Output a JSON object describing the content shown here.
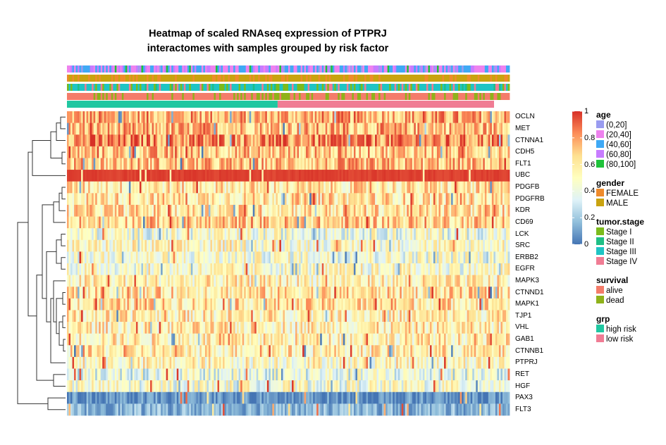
{
  "chart_data": {
    "type": "heatmap",
    "title_line1": "Heatmap of scaled RNAseq expression of  PTPRJ",
    "title_line2": "interactomes with samples grouped by risk factor",
    "rows": [
      {
        "gene": "OCLN",
        "mean": 0.75
      },
      {
        "gene": "MET",
        "mean": 0.72
      },
      {
        "gene": "CTNNA1",
        "mean": 0.82
      },
      {
        "gene": "CDH5",
        "mean": 0.7
      },
      {
        "gene": "FLT1",
        "mean": 0.7
      },
      {
        "gene": "UBC",
        "mean": 0.97
      },
      {
        "gene": "PDGFB",
        "mean": 0.6
      },
      {
        "gene": "PDGFRB",
        "mean": 0.62
      },
      {
        "gene": "KDR",
        "mean": 0.62
      },
      {
        "gene": "CD69",
        "mean": 0.68
      },
      {
        "gene": "LCK",
        "mean": 0.44
      },
      {
        "gene": "SRC",
        "mean": 0.5
      },
      {
        "gene": "ERBB2",
        "mean": 0.46
      },
      {
        "gene": "EGFR",
        "mean": 0.48
      },
      {
        "gene": "MAPK3",
        "mean": 0.55
      },
      {
        "gene": "CTNND1",
        "mean": 0.62
      },
      {
        "gene": "MAPK1",
        "mean": 0.62
      },
      {
        "gene": "TJP1",
        "mean": 0.57
      },
      {
        "gene": "VHL",
        "mean": 0.57
      },
      {
        "gene": "GAB1",
        "mean": 0.57
      },
      {
        "gene": "CTNNB1",
        "mean": 0.58
      },
      {
        "gene": "PTPRJ",
        "mean": 0.52
      },
      {
        "gene": "RET",
        "mean": 0.4
      },
      {
        "gene": "HGF",
        "mean": 0.46
      },
      {
        "gene": "PAX3",
        "mean": 0.05
      },
      {
        "gene": "FLT3",
        "mean": 0.15
      }
    ],
    "colorbar": {
      "range": [
        0,
        1
      ],
      "ticks": [
        "1",
        "0.8",
        "0.6",
        "0.4",
        "0.2",
        "0"
      ],
      "colors": [
        "#4575b4",
        "#91bfdb",
        "#e0f3f8",
        "#ffffbf",
        "#fee090",
        "#fc8d59",
        "#d73027"
      ]
    },
    "column_annotations": [
      "age",
      "gender",
      "tumor.stage",
      "survival",
      "grp"
    ],
    "grp_split_fraction": 0.476,
    "legends": [
      {
        "title": "age",
        "items": [
          {
            "label": "(0,20]",
            "color": "#9a9cf0"
          },
          {
            "label": "(20,40]",
            "color": "#ee82ee"
          },
          {
            "label": "(40,60]",
            "color": "#3fa9f5"
          },
          {
            "label": "(60,80]",
            "color": "#c77cff"
          },
          {
            "label": "(80,100]",
            "color": "#1fc23a"
          }
        ]
      },
      {
        "title": "gender",
        "items": [
          {
            "label": "FEMALE",
            "color": "#ef8b2c"
          },
          {
            "label": "MALE",
            "color": "#c9a310"
          }
        ]
      },
      {
        "title": "tumor.stage",
        "items": [
          {
            "label": "Stage I",
            "color": "#7cbb1c"
          },
          {
            "label": "Stage II",
            "color": "#1fbf86"
          },
          {
            "label": "Stage III",
            "color": "#1fc4c4"
          },
          {
            "label": "Stage IV",
            "color": "#f07c94"
          }
        ]
      },
      {
        "title": "survival",
        "items": [
          {
            "label": "alive",
            "color": "#f47c6a"
          },
          {
            "label": "dead",
            "color": "#8fb21a"
          }
        ]
      },
      {
        "title": "grp",
        "items": [
          {
            "label": "high risk",
            "color": "#20c7a1"
          },
          {
            "label": "low risk",
            "color": "#f07c94"
          }
        ]
      }
    ]
  }
}
